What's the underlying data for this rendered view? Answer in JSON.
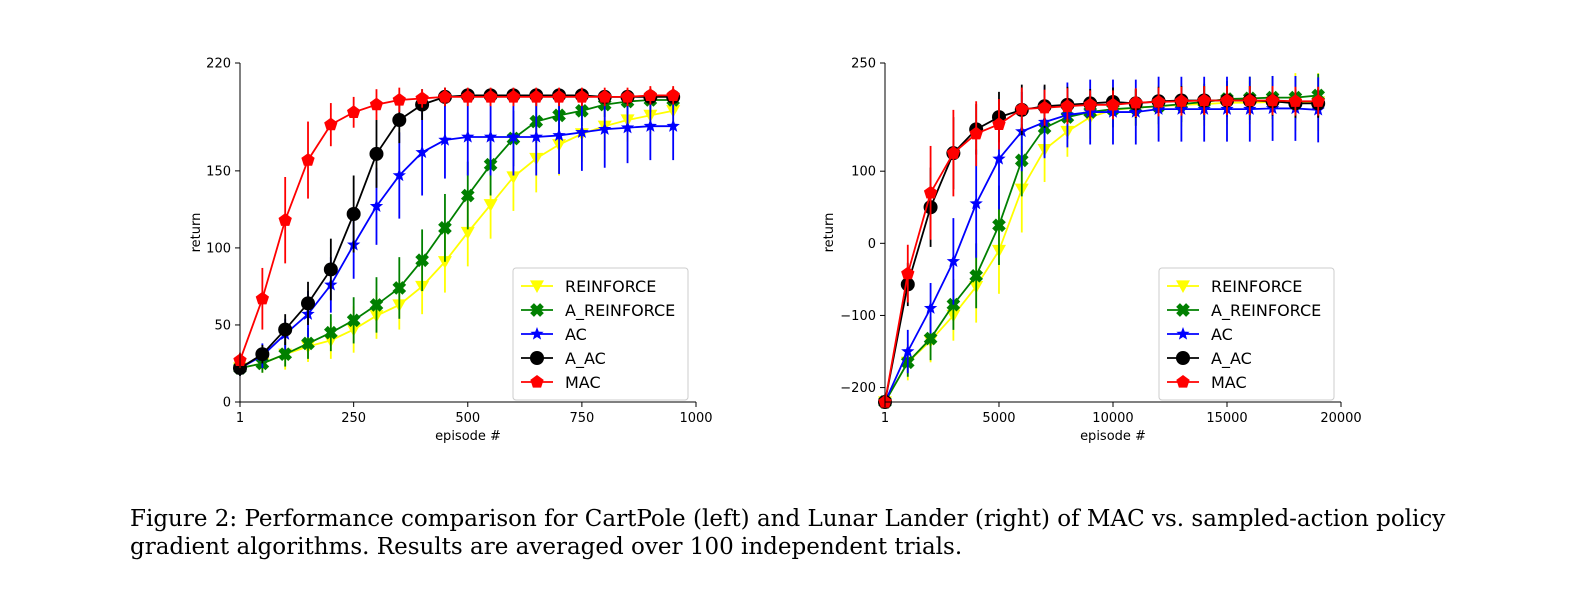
{
  "caption": "Figure 2: Performance comparison for CartPole (left) and Lunar Lander (right) of MAC vs. sampled-action policy gradient algorithms. Results are averaged over 100 independent trials.",
  "chart_data": [
    {
      "type": "line",
      "xlabel": "episode #",
      "ylabel": "return",
      "xlim": [
        1,
        1000
      ],
      "ylim": [
        0,
        220
      ],
      "xticks": [
        1,
        250,
        500,
        750,
        1000
      ],
      "yticks": [
        0,
        50,
        100,
        150,
        220
      ],
      "legend_position": "lower-right",
      "grid": false,
      "x": [
        1,
        50,
        100,
        150,
        200,
        250,
        300,
        350,
        400,
        450,
        500,
        550,
        600,
        650,
        700,
        750,
        800,
        850,
        900,
        950
      ],
      "series": [
        {
          "name": "REINFORCE",
          "color": "#ffff00",
          "marker": "triangle-down",
          "values": [
            22,
            25,
            31,
            36,
            40,
            47,
            56,
            63,
            75,
            91,
            110,
            128,
            146,
            158,
            167,
            174,
            179,
            183,
            186,
            189
          ],
          "errors": [
            5,
            6,
            10,
            10,
            12,
            15,
            15,
            16,
            18,
            20,
            22,
            22,
            22,
            22,
            20,
            18,
            16,
            14,
            12,
            12
          ]
        },
        {
          "name": "A_REINFORCE",
          "color": "#008000",
          "marker": "plus-filled",
          "values": [
            22,
            25,
            31,
            38,
            45,
            53,
            63,
            74,
            92,
            113,
            134,
            154,
            171,
            182,
            186,
            189,
            193,
            195,
            196,
            196
          ],
          "errors": [
            5,
            6,
            8,
            10,
            12,
            15,
            18,
            20,
            20,
            22,
            22,
            20,
            18,
            14,
            12,
            10,
            8,
            8,
            8,
            8
          ]
        },
        {
          "name": "AC",
          "color": "#0000ff",
          "marker": "star",
          "values": [
            22,
            30,
            44,
            57,
            76,
            102,
            127,
            147,
            162,
            170,
            172,
            172,
            172,
            172,
            173,
            175,
            177,
            178,
            179,
            179
          ],
          "errors": [
            5,
            8,
            10,
            15,
            18,
            22,
            25,
            28,
            28,
            25,
            25,
            25,
            25,
            25,
            25,
            25,
            25,
            23,
            22,
            22
          ]
        },
        {
          "name": "A_AC",
          "color": "#000000",
          "marker": "circle",
          "values": [
            22,
            31,
            47,
            64,
            86,
            122,
            161,
            183,
            193,
            198,
            199,
            199,
            199,
            199,
            199,
            199,
            198,
            198,
            198,
            198
          ],
          "errors": [
            5,
            6,
            10,
            14,
            20,
            25,
            22,
            15,
            10,
            6,
            4,
            4,
            4,
            4,
            4,
            4,
            4,
            4,
            4,
            4
          ]
        },
        {
          "name": "MAC",
          "color": "#ff0000",
          "marker": "pentagon",
          "values": [
            27,
            67,
            118,
            157,
            180,
            188,
            193,
            196,
            197,
            198,
            198,
            198,
            198,
            198,
            198,
            198,
            198,
            198,
            199,
            199
          ],
          "errors": [
            5,
            20,
            28,
            25,
            14,
            10,
            10,
            8,
            6,
            6,
            6,
            6,
            6,
            6,
            6,
            6,
            6,
            6,
            6,
            6
          ]
        }
      ]
    },
    {
      "type": "line",
      "xlabel": "episode #",
      "ylabel": "return",
      "xlim": [
        1,
        20000
      ],
      "ylim": [
        -220,
        250
      ],
      "xticks": [
        1,
        5000,
        10000,
        15000,
        20000
      ],
      "yticks": [
        -200,
        -100,
        0,
        100,
        250
      ],
      "legend_position": "lower-right",
      "grid": false,
      "x": [
        1,
        1000,
        2000,
        3000,
        4000,
        5000,
        6000,
        7000,
        8000,
        9000,
        10000,
        11000,
        12000,
        13000,
        14000,
        15000,
        16000,
        17000,
        18000,
        19000
      ],
      "series": [
        {
          "name": "REINFORCE",
          "color": "#ffff00",
          "marker": "triangle-down",
          "values": [
            -220,
            -165,
            -135,
            -100,
            -60,
            -10,
            75,
            130,
            155,
            175,
            185,
            188,
            190,
            192,
            193,
            195,
            195,
            196,
            196,
            196
          ],
          "errors": [
            10,
            25,
            30,
            35,
            50,
            60,
            60,
            45,
            35,
            30,
            25,
            25,
            30,
            30,
            30,
            30,
            30,
            35,
            40,
            40
          ]
        },
        {
          "name": "A_REINFORCE",
          "color": "#008000",
          "marker": "plus-filled",
          "values": [
            -220,
            -165,
            -132,
            -85,
            -45,
            25,
            115,
            160,
            175,
            182,
            186,
            188,
            190,
            193,
            196,
            200,
            201,
            202,
            202,
            205
          ],
          "errors": [
            10,
            20,
            30,
            35,
            45,
            55,
            50,
            40,
            30,
            25,
            25,
            25,
            25,
            25,
            25,
            25,
            30,
            30,
            30,
            30
          ]
        },
        {
          "name": "AC",
          "color": "#0000ff",
          "marker": "star",
          "values": [
            -220,
            -150,
            -90,
            -25,
            55,
            117,
            155,
            168,
            178,
            182,
            182,
            182,
            186,
            186,
            186,
            186,
            186,
            187,
            187,
            185
          ],
          "errors": [
            10,
            30,
            35,
            60,
            75,
            70,
            55,
            50,
            45,
            45,
            45,
            45,
            45,
            45,
            45,
            45,
            45,
            45,
            45,
            45
          ]
        },
        {
          "name": "A_AC",
          "color": "#000000",
          "marker": "circle",
          "values": [
            -220,
            -57,
            50,
            125,
            158,
            175,
            185,
            190,
            192,
            194,
            196,
            194,
            197,
            198,
            198,
            198,
            198,
            197,
            194,
            194
          ],
          "errors": [
            10,
            30,
            55,
            50,
            35,
            35,
            35,
            30,
            25,
            20,
            20,
            20,
            20,
            20,
            20,
            20,
            20,
            20,
            20,
            20
          ]
        },
        {
          "name": "MAC",
          "color": "#ff0000",
          "marker": "pentagon",
          "values": [
            -220,
            -42,
            70,
            125,
            152,
            165,
            186,
            188,
            190,
            192,
            192,
            195,
            196,
            197,
            198,
            198,
            198,
            198,
            197,
            197
          ],
          "errors": [
            10,
            40,
            65,
            60,
            45,
            35,
            30,
            25,
            25,
            20,
            20,
            20,
            20,
            20,
            20,
            20,
            20,
            20,
            20,
            20
          ]
        }
      ]
    }
  ]
}
